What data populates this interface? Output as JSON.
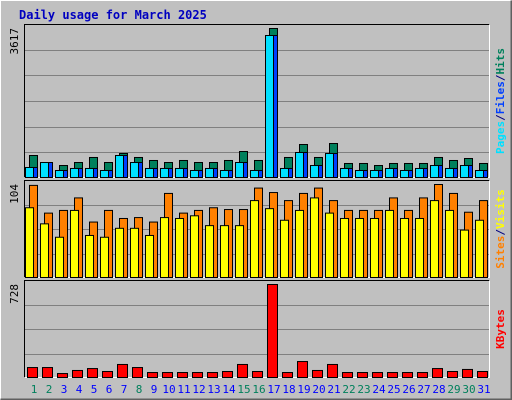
{
  "chart_data": [
    {
      "type": "bar",
      "title": "Daily usage for March 2025",
      "categories": [
        "1",
        "2",
        "3",
        "4",
        "5",
        "6",
        "7",
        "8",
        "9",
        "10",
        "11",
        "12",
        "13",
        "14",
        "15",
        "16",
        "17",
        "18",
        "19",
        "20",
        "21",
        "22",
        "23",
        "24",
        "25",
        "26",
        "27",
        "28",
        "29",
        "30",
        "31"
      ],
      "legend_separator": "/",
      "series": [
        {
          "name": "Pages",
          "color": "#00e0ff",
          "values": [
            243,
            364,
            170,
            219,
            219,
            170,
            534,
            364,
            219,
            219,
            219,
            170,
            219,
            170,
            364,
            170,
            3447,
            219,
            607,
            291,
            583,
            219,
            170,
            170,
            219,
            170,
            219,
            291,
            219,
            291,
            170
          ]
        },
        {
          "name": "Files",
          "color": "#0040ff",
          "values": [
            243,
            364,
            170,
            219,
            219,
            170,
            534,
            364,
            219,
            219,
            219,
            170,
            219,
            170,
            364,
            170,
            3447,
            219,
            607,
            291,
            583,
            219,
            170,
            170,
            219,
            170,
            219,
            291,
            219,
            291,
            170
          ]
        },
        {
          "name": "Hits",
          "color": "#00805c",
          "values": [
            534,
            364,
            291,
            364,
            486,
            364,
            583,
            486,
            413,
            364,
            413,
            364,
            364,
            413,
            631,
            413,
            3617,
            486,
            801,
            486,
            825,
            340,
            340,
            291,
            340,
            340,
            340,
            486,
            413,
            461,
            340
          ]
        }
      ],
      "ylim": [
        0,
        3617
      ],
      "yticks": [
        3617
      ]
    },
    {
      "type": "bar",
      "categories": [
        "1",
        "2",
        "3",
        "4",
        "5",
        "6",
        "7",
        "8",
        "9",
        "10",
        "11",
        "12",
        "13",
        "14",
        "15",
        "16",
        "17",
        "18",
        "19",
        "20",
        "21",
        "22",
        "23",
        "24",
        "25",
        "26",
        "27",
        "28",
        "29",
        "30",
        "31"
      ],
      "legend_separator": "/",
      "series": [
        {
          "name": "Sites",
          "color": "#ff8000",
          "values": [
            103,
            72,
            75,
            89,
            62,
            75,
            66,
            67,
            62,
            94,
            72,
            75,
            78,
            76,
            76,
            100,
            95,
            86,
            94,
            100,
            86,
            75,
            75,
            75,
            89,
            75,
            89,
            104,
            94,
            73,
            86
          ]
        },
        {
          "name": "Visits",
          "color": "#ffff00",
          "values": [
            78,
            60,
            45,
            75,
            47,
            45,
            55,
            55,
            47,
            67,
            66,
            69,
            58,
            58,
            58,
            86,
            77,
            64,
            75,
            89,
            72,
            66,
            66,
            66,
            75,
            66,
            66,
            86,
            75,
            53,
            64
          ]
        }
      ],
      "ylim": [
        0,
        104
      ],
      "yticks": [
        104
      ]
    },
    {
      "type": "bar",
      "categories": [
        "1",
        "2",
        "3",
        "4",
        "5",
        "6",
        "7",
        "8",
        "9",
        "10",
        "11",
        "12",
        "13",
        "14",
        "15",
        "16",
        "17",
        "18",
        "19",
        "20",
        "21",
        "22",
        "23",
        "24",
        "25",
        "26",
        "27",
        "28",
        "29",
        "30",
        "31"
      ],
      "highlight_categories": [
        "1",
        "2",
        "8",
        "15",
        "16",
        "22",
        "23",
        "29",
        "30"
      ],
      "highlight_color": "#00805c",
      "category_color": "#0000ff",
      "series": [
        {
          "name": "KBytes",
          "color": "#ff0000",
          "values": [
            78,
            78,
            31,
            55,
            70,
            47,
            102,
            78,
            39,
            39,
            39,
            39,
            39,
            47,
            102,
            47,
            728,
            39,
            125,
            55,
            102,
            39,
            39,
            39,
            39,
            39,
            39,
            70,
            47,
            63,
            47
          ]
        }
      ],
      "ylim": [
        0,
        728
      ],
      "yticks": [
        728
      ]
    }
  ]
}
